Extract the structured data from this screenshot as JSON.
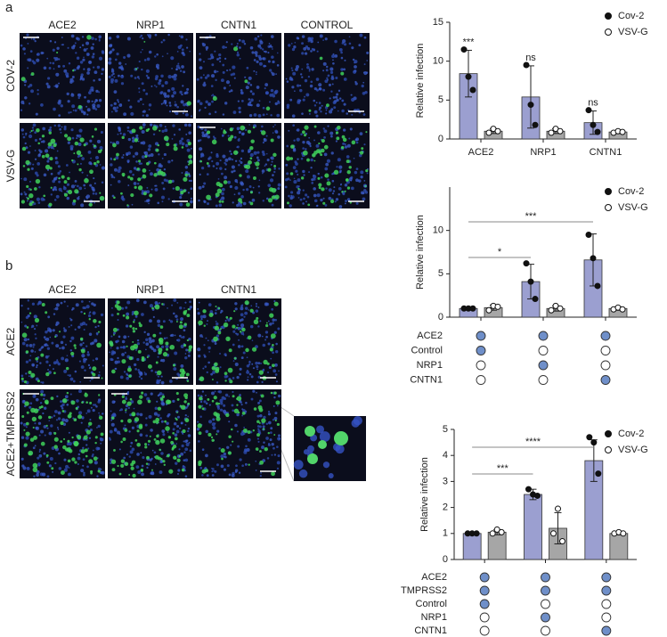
{
  "panels": {
    "a": {
      "label": "a",
      "columns": [
        "ACE2",
        "NRP1",
        "CNTN1",
        "CONTROL"
      ],
      "rows": [
        "COV-2",
        "VSV-G"
      ]
    },
    "b": {
      "label": "b",
      "columns": [
        "ACE2",
        "NRP1",
        "CNTN1"
      ],
      "rows": [
        "ACE2",
        "ACE2+TMPRSS2"
      ]
    }
  },
  "chart_data": [
    {
      "type": "bar",
      "ylabel": "Relative infection",
      "categories": [
        "ACE2",
        "NRP1",
        "CNTN1"
      ],
      "ylim": [
        0,
        15
      ],
      "yticks": [
        0,
        5,
        10,
        15
      ],
      "series": [
        {
          "name": "Cov-2",
          "color": "#9b9fd0",
          "marker": "filled",
          "values": [
            8.4,
            5.4,
            2.1
          ],
          "errors": [
            3.0,
            4.0,
            1.5
          ],
          "points": [
            [
              11.5,
              8.0,
              6.3
            ],
            [
              9.5,
              4.4,
              1.8
            ],
            [
              3.7,
              1.8,
              0.9
            ]
          ]
        },
        {
          "name": "VSV-G",
          "color": "#a6a6a6",
          "marker": "open",
          "values": [
            1.0,
            1.0,
            0.9
          ],
          "errors": [
            0.3,
            0.3,
            0.2
          ],
          "points": [
            [
              0.8,
              1.3,
              1.0
            ],
            [
              0.8,
              1.3,
              1.0
            ],
            [
              0.8,
              1.0,
              0.9
            ]
          ]
        }
      ],
      "significance": [
        "***",
        "ns",
        "ns"
      ]
    },
    {
      "type": "bar",
      "ylabel": "Relative infection",
      "categories": [
        null,
        null,
        null
      ],
      "ylim": [
        0,
        15
      ],
      "yticks": [
        0,
        5,
        10
      ],
      "series": [
        {
          "name": "Cov-2",
          "color": "#9b9fd0",
          "marker": "filled",
          "values": [
            1.0,
            4.1,
            6.6
          ],
          "errors": [
            0.05,
            2.0,
            3.0
          ],
          "points": [
            [
              1.0,
              1.0,
              1.0
            ],
            [
              6.2,
              4.1,
              2.1
            ],
            [
              9.5,
              6.8,
              3.6
            ]
          ]
        },
        {
          "name": "VSV-G",
          "color": "#a6a6a6",
          "marker": "open",
          "values": [
            1.1,
            1.0,
            1.0
          ],
          "errors": [
            0.3,
            0.3,
            0.2
          ],
          "points": [
            [
              0.8,
              1.3,
              1.2
            ],
            [
              0.8,
              1.3,
              1.0
            ],
            [
              0.9,
              1.1,
              0.9
            ]
          ]
        }
      ],
      "significance": [
        null,
        "*",
        "***"
      ],
      "conditions": [
        {
          "name": "ACE2",
          "present": [
            true,
            true,
            true
          ]
        },
        {
          "name": "Control",
          "present": [
            true,
            false,
            false
          ]
        },
        {
          "name": "NRP1",
          "present": [
            false,
            true,
            false
          ]
        },
        {
          "name": "CNTN1",
          "present": [
            false,
            false,
            true
          ]
        }
      ]
    },
    {
      "type": "bar",
      "ylabel": "Relative infection",
      "categories": [
        null,
        null,
        null
      ],
      "ylim": [
        0,
        5
      ],
      "yticks": [
        0,
        1,
        2,
        3,
        4,
        5
      ],
      "series": [
        {
          "name": "Cov-2",
          "color": "#9b9fd0",
          "marker": "filled",
          "values": [
            1.0,
            2.5,
            3.8
          ],
          "errors": [
            0.02,
            0.2,
            0.8
          ],
          "points": [
            [
              1.0,
              1.0,
              1.0
            ],
            [
              2.7,
              2.5,
              2.45
            ],
            [
              4.7,
              4.5,
              3.3
            ]
          ]
        },
        {
          "name": "VSV-G",
          "color": "#a6a6a6",
          "marker": "open",
          "values": [
            1.05,
            1.2,
            1.0
          ],
          "errors": [
            0.1,
            0.6,
            0.05
          ],
          "points": [
            [
              1.0,
              1.15,
              1.05
            ],
            [
              1.0,
              1.95,
              0.7
            ],
            [
              1.0,
              1.05,
              1.0
            ]
          ]
        }
      ],
      "significance": [
        null,
        "***",
        "****"
      ],
      "conditions": [
        {
          "name": "ACE2",
          "present": [
            true,
            true,
            true
          ]
        },
        {
          "name": "TMPRSS2",
          "present": [
            true,
            true,
            true
          ]
        },
        {
          "name": "Control",
          "present": [
            true,
            false,
            false
          ]
        },
        {
          "name": "NRP1",
          "present": [
            false,
            true,
            false
          ]
        },
        {
          "name": "CNTN1",
          "present": [
            false,
            false,
            true
          ]
        }
      ]
    }
  ]
}
